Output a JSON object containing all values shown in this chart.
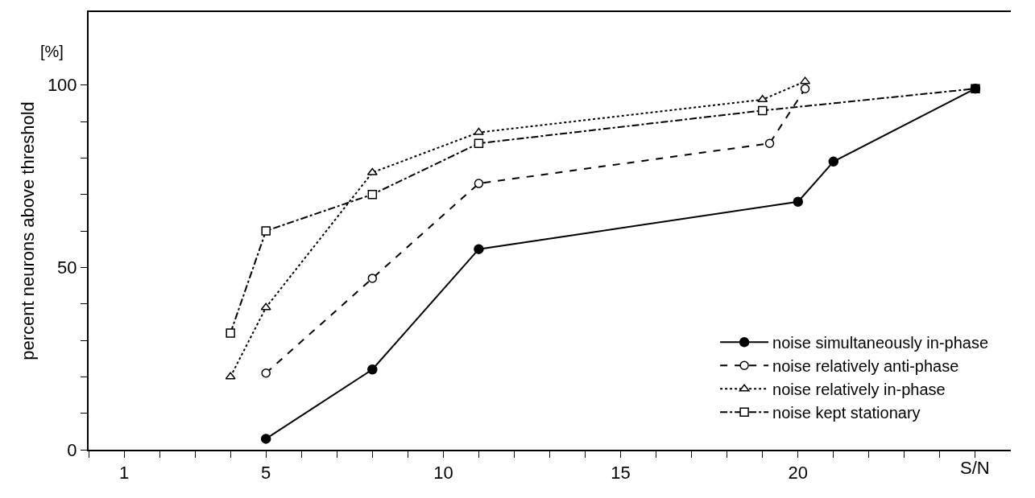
{
  "chart_data": {
    "type": "line",
    "xlabel": "S/N",
    "ylabel": "percent neurons above threshold",
    "annotations": [
      "[%]"
    ],
    "xlim": [
      0,
      26
    ],
    "ylim": [
      0,
      120
    ],
    "xticks": [
      {
        "value": 0,
        "label": null
      },
      1,
      {
        "value": 2,
        "label": null
      },
      {
        "value": 3,
        "label": null
      },
      {
        "value": 4,
        "label": null
      },
      5,
      {
        "value": 6,
        "label": null
      },
      {
        "value": 7,
        "label": null
      },
      {
        "value": 8,
        "label": null
      },
      {
        "value": 9,
        "label": null
      },
      10,
      {
        "value": 11,
        "label": null
      },
      {
        "value": 12,
        "label": null
      },
      {
        "value": 13,
        "label": null
      },
      {
        "value": 14,
        "label": null
      },
      15,
      {
        "value": 16,
        "label": null
      },
      {
        "value": 17,
        "label": null
      },
      {
        "value": 18,
        "label": null
      },
      {
        "value": 19,
        "label": null
      },
      20,
      {
        "value": 21,
        "label": null
      },
      {
        "value": 22,
        "label": null
      },
      {
        "value": 23,
        "label": null
      },
      {
        "value": 24,
        "label": null
      },
      {
        "value": 25,
        "label": null
      }
    ],
    "yticks": [
      0,
      {
        "value": 10,
        "label": null
      },
      {
        "value": 20,
        "label": null
      },
      {
        "value": 30,
        "label": null
      },
      {
        "value": 40,
        "label": null
      },
      50,
      {
        "value": 60,
        "label": null
      },
      {
        "value": 70,
        "label": null
      },
      {
        "value": 80,
        "label": null
      },
      {
        "value": 90,
        "label": null
      },
      100
    ],
    "legend": "bottom right",
    "series": [
      {
        "name": "noise simultaneously in-phase",
        "color": "#000000",
        "marker": "circle",
        "line_style": "solid",
        "x": [
          5,
          8,
          11,
          20,
          21,
          25
        ],
        "values": [
          3,
          22,
          55,
          68,
          79,
          99
        ]
      },
      {
        "name": "noise relatively anti-phase",
        "color": "#000000",
        "marker": "circle",
        "line_style": "dashed",
        "x": [
          5,
          8,
          11,
          19.2,
          20.2
        ],
        "values": [
          21,
          47,
          73,
          84,
          99
        ]
      },
      {
        "name": "noise relatively in-phase",
        "color": "#000000",
        "marker": "triangle",
        "line_style": "dotted",
        "x": [
          4,
          5,
          8,
          11,
          19,
          20.2
        ],
        "values": [
          20,
          39,
          76,
          87,
          96,
          101
        ]
      },
      {
        "name": "noise kept stationary",
        "color": "#000000",
        "marker": "square",
        "line_style": "dashdot",
        "x": [
          4,
          5,
          8,
          11,
          19,
          25
        ],
        "values": [
          32,
          60,
          70,
          84,
          93,
          99
        ]
      }
    ]
  }
}
